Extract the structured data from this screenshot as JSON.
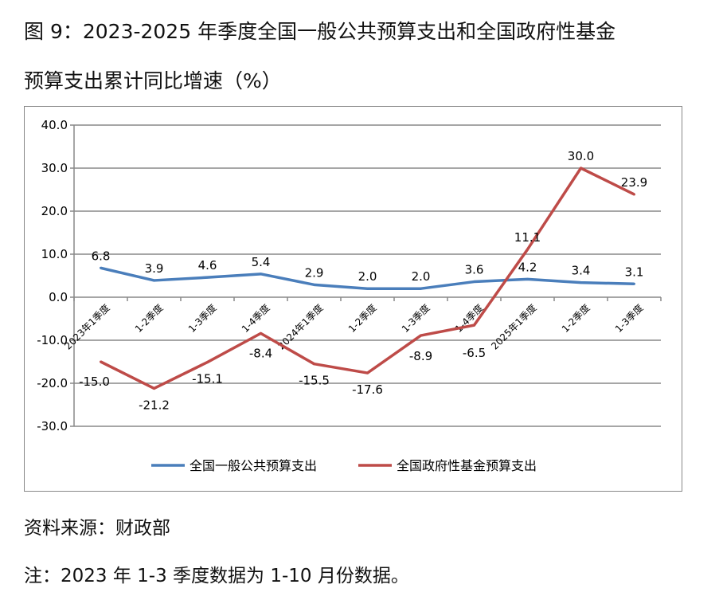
{
  "title_line1": "图 9：2023-2025 年季度全国一般公共预算支出和全国政府性基金",
  "title_line2": "预算支出累计同比增速（%）",
  "source": "资料来源：财政部",
  "note": "注：2023 年 1-3 季度数据为 1-10 月份数据。",
  "chart_data": {
    "type": "line",
    "categories": [
      "2023年1季度",
      "1-2季度",
      "1-3季度",
      "1-4季度",
      "2024年1季度",
      "1-2季度",
      "1-3季度",
      "1-4季度",
      "2025年1季度",
      "1-2季度",
      "1-3季度"
    ],
    "ylim": [
      -30,
      40
    ],
    "yticks": [
      "40.0",
      "30.0",
      "20.0",
      "10.0",
      "0.0",
      "-10.0",
      "-20.0",
      "-30.0"
    ],
    "grid": true,
    "legend_position": "bottom",
    "series": [
      {
        "name": "全国一般公共预算支出",
        "color": "#4a7ebb",
        "values": [
          6.8,
          3.9,
          4.6,
          5.4,
          2.9,
          2.0,
          2.0,
          3.6,
          4.2,
          3.4,
          3.1
        ],
        "labels": [
          "6.8",
          "3.9",
          "4.6",
          "5.4",
          "2.9",
          "2.0",
          "2.0",
          "3.6",
          "4.2",
          "3.4",
          "3.1"
        ]
      },
      {
        "name": "全国政府性基金预算支出",
        "color": "#be4b48",
        "values": [
          -15.0,
          -21.2,
          -15.1,
          -8.4,
          -15.5,
          -17.6,
          -8.9,
          -6.5,
          11.1,
          30.0,
          23.9
        ],
        "labels": [
          "-15.0",
          "-21.2",
          "-15.1",
          "-8.4",
          "-15.5",
          "-17.6",
          "-8.9",
          "-6.5",
          "11.1",
          "30.0",
          "23.9"
        ]
      }
    ]
  }
}
